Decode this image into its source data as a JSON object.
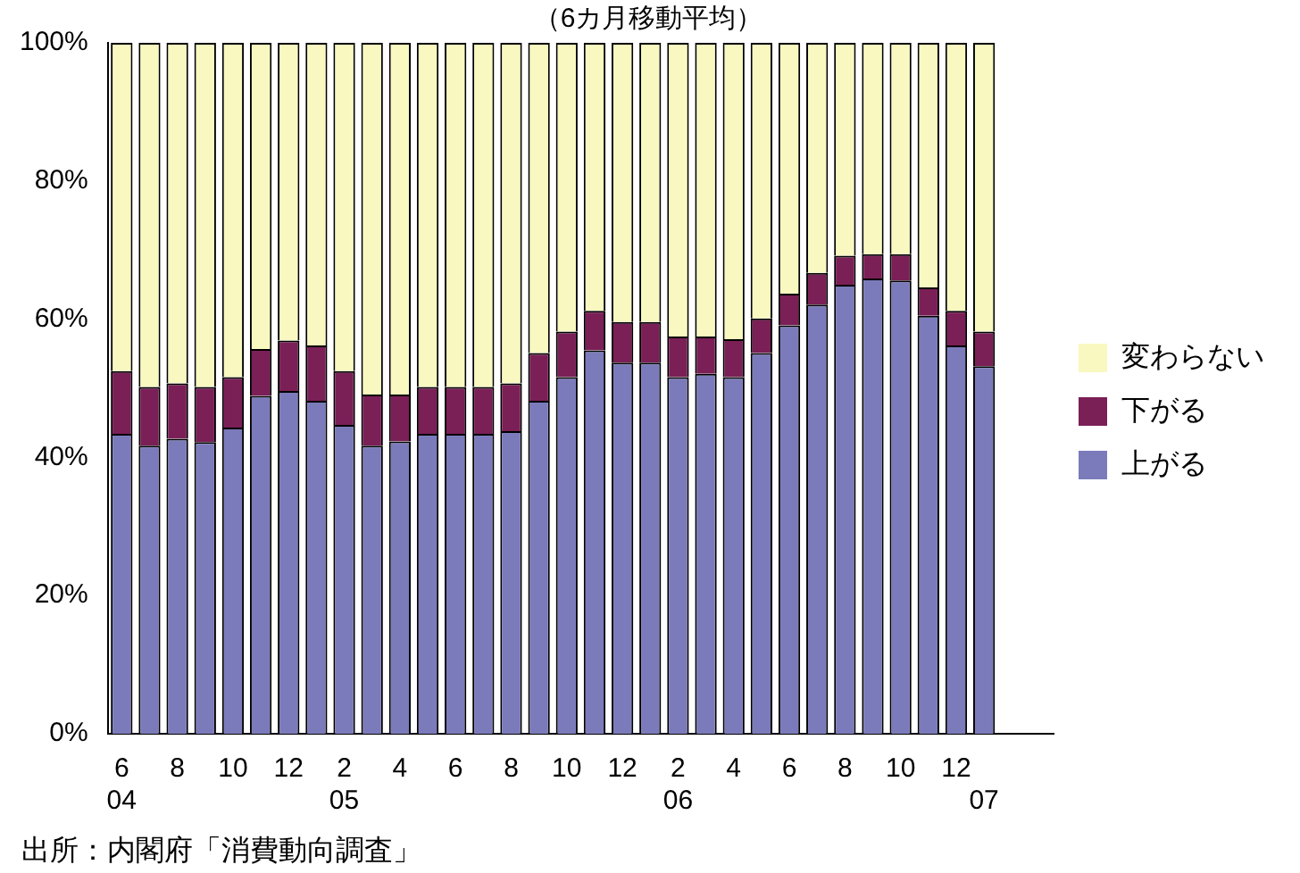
{
  "chart_data": {
    "type": "bar",
    "stacked": true,
    "title": "（6カ月移動平均）",
    "categories": [
      "6\n04",
      null,
      "8",
      null,
      "10",
      null,
      "12",
      null,
      "2\n05",
      null,
      "4",
      null,
      "6",
      null,
      "8",
      null,
      "10",
      null,
      "12",
      null,
      "2\n06",
      null,
      "4",
      null,
      "6",
      null,
      "8",
      null,
      "10",
      null,
      "12",
      "\n07",
      null,
      null
    ],
    "series": [
      {
        "name": "上がる",
        "color": "#7b7bbb",
        "values": [
          43.4,
          41.7,
          42.7,
          42.2,
          44.3,
          48.9,
          49.6,
          48.2,
          44.7,
          41.7,
          42.3,
          43.4,
          43.4,
          43.4,
          43.8,
          48.2,
          51.6,
          55.5,
          53.7,
          53.7,
          51.6,
          52.1,
          51.6,
          55.1,
          59.1,
          62.1,
          65.0,
          65.9,
          65.6,
          60.5,
          56.2,
          53.2,
          null,
          null
        ]
      },
      {
        "name": "下がる",
        "color": "#7b1f57",
        "values": [
          9.1,
          8.5,
          8.0,
          8.0,
          7.3,
          6.8,
          7.3,
          8.0,
          7.8,
          7.4,
          6.8,
          6.8,
          6.8,
          6.8,
          6.9,
          6.9,
          6.6,
          5.7,
          5.9,
          5.9,
          5.9,
          5.4,
          5.5,
          5.0,
          4.6,
          4.6,
          4.2,
          3.5,
          3.8,
          4.1,
          5.0,
          5.0,
          null,
          null
        ]
      },
      {
        "name": "変わらない",
        "color": "#f8f8c0",
        "values": [
          47.5,
          49.8,
          49.3,
          49.8,
          48.4,
          44.3,
          43.1,
          43.8,
          47.5,
          50.9,
          50.9,
          49.8,
          49.8,
          49.8,
          49.3,
          44.9,
          41.8,
          38.8,
          40.4,
          40.4,
          42.5,
          42.5,
          42.9,
          39.9,
          36.3,
          33.3,
          30.8,
          30.6,
          30.6,
          35.4,
          38.8,
          41.8,
          null,
          null
        ]
      }
    ],
    "ylim": [
      0,
      100
    ],
    "yticks": [
      {
        "value": 0,
        "label": "0%"
      },
      {
        "value": 20,
        "label": "20%"
      },
      {
        "value": 40,
        "label": "40%"
      },
      {
        "value": 60,
        "label": "60%"
      },
      {
        "value": 80,
        "label": "80%"
      },
      {
        "value": 100,
        "label": "100%"
      }
    ],
    "grid": false,
    "legend": "right",
    "annotations": [
      "出所：内閣府「消費動向調査」"
    ]
  }
}
